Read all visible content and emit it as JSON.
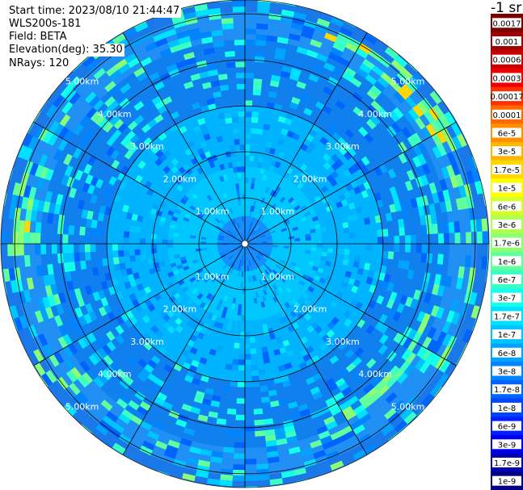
{
  "header": {
    "start_time": "Start time: 2023/08/10 21:44:47",
    "instrument": "WLS200s-181",
    "field": "Field: BETA",
    "elevation": "Elevation(deg): 35.30",
    "nrays": "NRays: 120"
  },
  "chart_data": {
    "type": "heatmap",
    "projection": "polar-ppi",
    "field": "BETA",
    "elevation_deg": 35.3,
    "n_rays": 120,
    "range_rings_km": [
      1,
      2,
      3,
      4,
      5
    ],
    "max_range_km": 5.3,
    "range_ring_labels": [
      "1.00km",
      "2.00km",
      "3.00km",
      "4.00km",
      "5.00km"
    ],
    "azimuth_spokes_deg": [
      0,
      30,
      60,
      90,
      120,
      150,
      180,
      210,
      240,
      270,
      300,
      330
    ],
    "colorbar": {
      "unit_label": "-1 sr",
      "scale": "log",
      "levels": [
        {
          "label": "0.0017",
          "color": "#7a0000"
        },
        {
          "label": "0.001",
          "color": "#a30000"
        },
        {
          "label": "0.0006",
          "color": "#c80000"
        },
        {
          "label": "0.0003",
          "color": "#ee0000"
        },
        {
          "label": "0.00017",
          "color": "#ff3000"
        },
        {
          "label": "0.0001",
          "color": "#ff6a00"
        },
        {
          "label": "6e-5",
          "color": "#ff9000"
        },
        {
          "label": "3e-5",
          "color": "#ffb400"
        },
        {
          "label": "1.7e-5",
          "color": "#ffd800"
        },
        {
          "label": "1e-5",
          "color": "#ffff00"
        },
        {
          "label": "6e-6",
          "color": "#d6ff29"
        },
        {
          "label": "3e-6",
          "color": "#b0ff4f"
        },
        {
          "label": "1.7e-6",
          "color": "#8cff73"
        },
        {
          "label": "1e-6",
          "color": "#62ff9c"
        },
        {
          "label": "6e-7",
          "color": "#3cffc3"
        },
        {
          "label": "3e-7",
          "color": "#14ffeb"
        },
        {
          "label": "1.7e-7",
          "color": "#00e0ff"
        },
        {
          "label": "1e-7",
          "color": "#00c4ff"
        },
        {
          "label": "6e-8",
          "color": "#00a4ff"
        },
        {
          "label": "3e-8",
          "color": "#0084ff"
        },
        {
          "label": "1.7e-8",
          "color": "#0064ff"
        },
        {
          "label": "1e-8",
          "color": "#0044ff"
        },
        {
          "label": "6e-9",
          "color": "#0020ff"
        },
        {
          "label": "3e-9",
          "color": "#0000e8"
        },
        {
          "label": "1.7e-9",
          "color": "#0000b4"
        },
        {
          "label": "1e-9",
          "color": "#000080"
        }
      ]
    },
    "bands_by_range": [
      {
        "range_km": [
          0.0,
          0.5
        ],
        "dominant_color": "#1790ff",
        "note_level": "3e-8"
      },
      {
        "range_km": [
          0.5,
          1.6
        ],
        "dominant_color": "#00c8ff",
        "note_level": "1e-7"
      },
      {
        "range_km": [
          1.6,
          3.0
        ],
        "dominant_color": "#00b4ff",
        "note_level": "6e-8"
      },
      {
        "range_km": [
          3.0,
          4.4
        ],
        "dominant_color": "#1080ee",
        "note_level": "3e-8"
      },
      {
        "range_km": [
          4.4,
          5.0
        ],
        "dominant_color": "#2090f5",
        "note_level": "3e-8"
      },
      {
        "range_km": [
          5.0,
          5.3
        ],
        "dominant_color": "#1a78e8",
        "note_level": "1.7e-8"
      }
    ]
  }
}
